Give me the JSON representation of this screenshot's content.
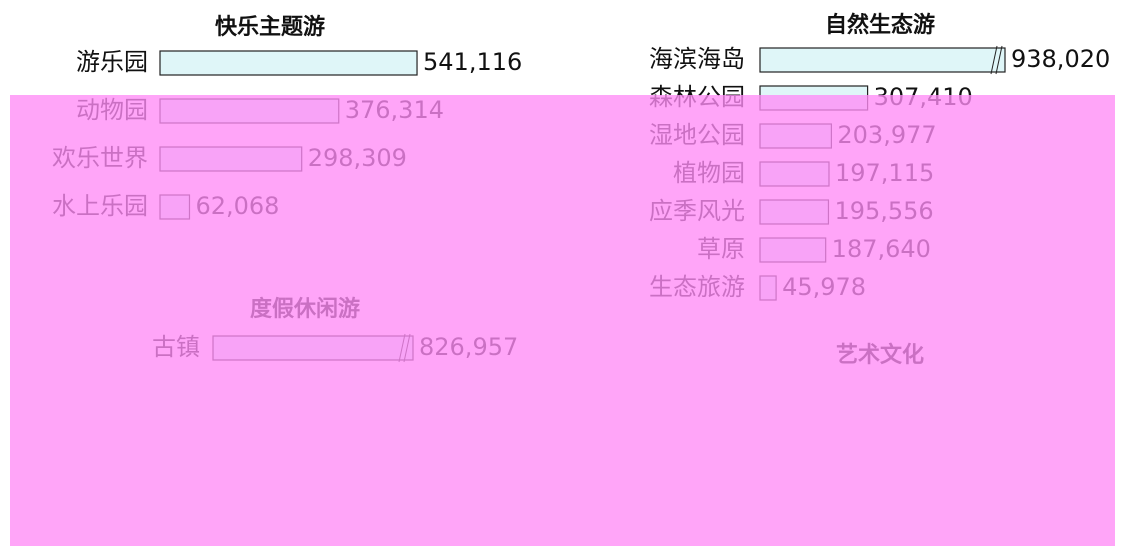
{
  "chart_data": [
    {
      "type": "bar",
      "title": "快乐主题游",
      "color": "#dff6f8",
      "categories": [
        "游乐园",
        "动物园",
        "欢乐世界",
        "水上乐园"
      ],
      "values": [
        541116,
        376314,
        298309,
        62068
      ],
      "value_labels": [
        "541,116",
        "376,314",
        "298,309",
        "62,068"
      ],
      "xlim": [
        0,
        560000
      ]
    },
    {
      "type": "bar",
      "title": "自然生态游",
      "color": "#dff6f8",
      "categories": [
        "海滨海岛",
        "森林公园",
        "湿地公园",
        "植物园",
        "应季风光",
        "草原",
        "生态旅游"
      ],
      "values": [
        938020,
        307410,
        203977,
        197115,
        195556,
        187640,
        45978
      ],
      "value_labels": [
        "938,020",
        "307,410",
        "203,977",
        "197,115",
        "195,556",
        "187,640",
        "45,978"
      ],
      "xlim": [
        0,
        700000
      ]
    },
    {
      "type": "bar",
      "title": "度假休闲游",
      "color": "#dff6f8",
      "categories": [
        "古镇"
      ],
      "values": [
        826957
      ],
      "value_labels": [
        "826,957"
      ],
      "xlim": [
        0,
        560000
      ]
    },
    {
      "type": "bar",
      "title": "艺术文化",
      "color": "#dff6f8",
      "categories": [],
      "values": [],
      "value_labels": [],
      "xlim": [
        0,
        560000
      ]
    }
  ]
}
